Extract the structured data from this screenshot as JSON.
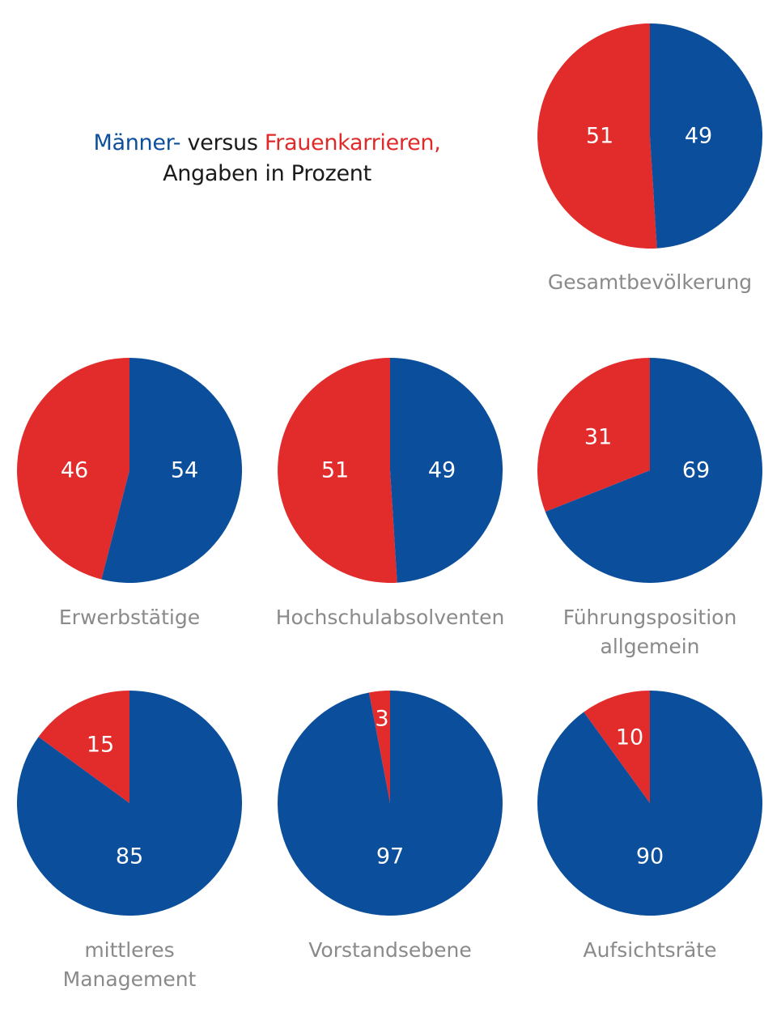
{
  "legend": {
    "men_label": "Männer-",
    "versus": " versus ",
    "women_label": "Frauenkarrieren,",
    "line2": "Angaben in Prozent"
  },
  "colors": {
    "men": "#0b4f9c",
    "women": "#e22b2b"
  },
  "chart_data": {
    "type": "pie",
    "series_colors": [
      "#0b4f9c",
      "#e22b2b"
    ],
    "charts": [
      {
        "title": [
          "Gesamtbevölkerung"
        ],
        "men": 49,
        "women": 51
      },
      {
        "title": [
          "Erwerbstätige"
        ],
        "men": 54,
        "women": 46
      },
      {
        "title": [
          "Hochschulabsolventen"
        ],
        "men": 49,
        "women": 51
      },
      {
        "title": [
          "Führungsposition",
          "allgemein"
        ],
        "men": 69,
        "women": 31
      },
      {
        "title": [
          "mittleres",
          "Management"
        ],
        "men": 85,
        "women": 15
      },
      {
        "title": [
          "Vorstandsebene"
        ],
        "men": 97,
        "women": 3
      },
      {
        "title": [
          "Aufsichtsräte"
        ],
        "men": 90,
        "women": 10
      }
    ]
  }
}
